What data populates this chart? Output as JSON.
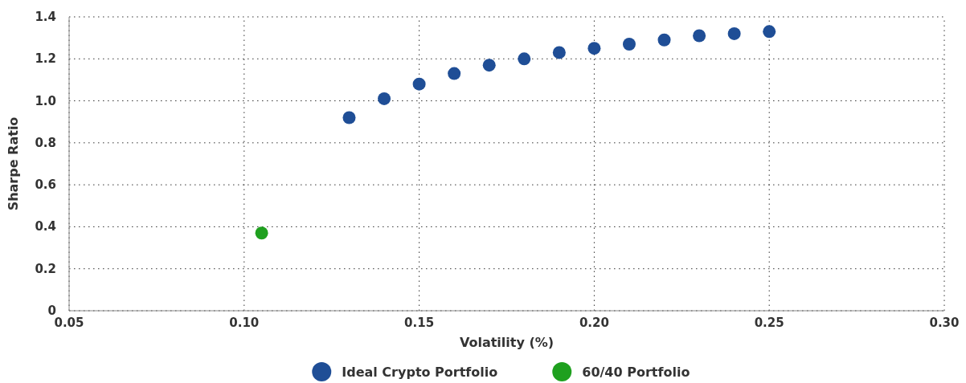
{
  "chart_data": {
    "type": "scatter",
    "xlabel": "Volatility (%)",
    "ylabel": "Sharpe Ratio",
    "xlim": [
      0.05,
      0.3
    ],
    "xticks": [
      {
        "value": 0.05,
        "label": "0.05"
      },
      {
        "value": 0.1,
        "label": "0.10"
      },
      {
        "value": 0.15,
        "label": "0.15"
      },
      {
        "value": 0.2,
        "label": "0.20"
      },
      {
        "value": 0.25,
        "label": "0.25"
      },
      {
        "value": 0.3,
        "label": "0.30"
      }
    ],
    "ylim": [
      0,
      1.4
    ],
    "yticks": [
      0,
      {
        "value": 0.2,
        "label": "0.2"
      },
      {
        "value": 0.4,
        "label": "0.4"
      },
      {
        "value": 0.6,
        "label": "0.6"
      },
      {
        "value": 0.8,
        "label": "0.8"
      },
      {
        "value": 1,
        "label": "1.0"
      },
      {
        "value": 1.2,
        "label": "1.2"
      },
      {
        "value": 1.4,
        "label": "1.4"
      }
    ],
    "grid": true,
    "legend": "bottom",
    "marker": "circle",
    "series": [
      {
        "name": "Ideal Crypto Portfolio",
        "color": "#1f4e96",
        "x": [
          0.13,
          0.14,
          0.15,
          0.16,
          0.17,
          0.18,
          0.19,
          0.2,
          0.21,
          0.22,
          0.23,
          0.24,
          0.25
        ],
        "values": [
          0.92,
          1.01,
          1.08,
          1.13,
          1.17,
          1.2,
          1.23,
          1.25,
          1.27,
          1.29,
          1.31,
          1.32,
          1.33
        ]
      },
      {
        "name": "60/40 Portfolio",
        "color": "#1fa01f",
        "x": [
          0.105
        ],
        "values": [
          0.37
        ]
      }
    ]
  }
}
